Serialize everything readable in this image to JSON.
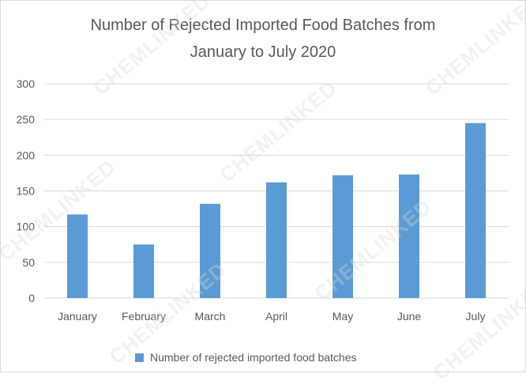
{
  "watermark": "CHEMLINKED",
  "colors": {
    "bar": "#5b9bd5",
    "grid": "#d9d9d9",
    "text": "#595959"
  },
  "chart_data": {
    "type": "bar",
    "title": [
      "Number of Rejected Imported Food Batches from",
      "January to July 2020"
    ],
    "categories": [
      "January",
      "February",
      "March",
      "April",
      "May",
      "June",
      "July"
    ],
    "series": [
      {
        "name": "Number of rejected imported food batches",
        "values": [
          117,
          75,
          132,
          162,
          172,
          173,
          245
        ]
      }
    ],
    "ylim": [
      0,
      300
    ],
    "yticks": [
      0,
      50,
      100,
      150,
      200,
      250,
      300
    ],
    "grid": true,
    "legend": "bottom"
  }
}
